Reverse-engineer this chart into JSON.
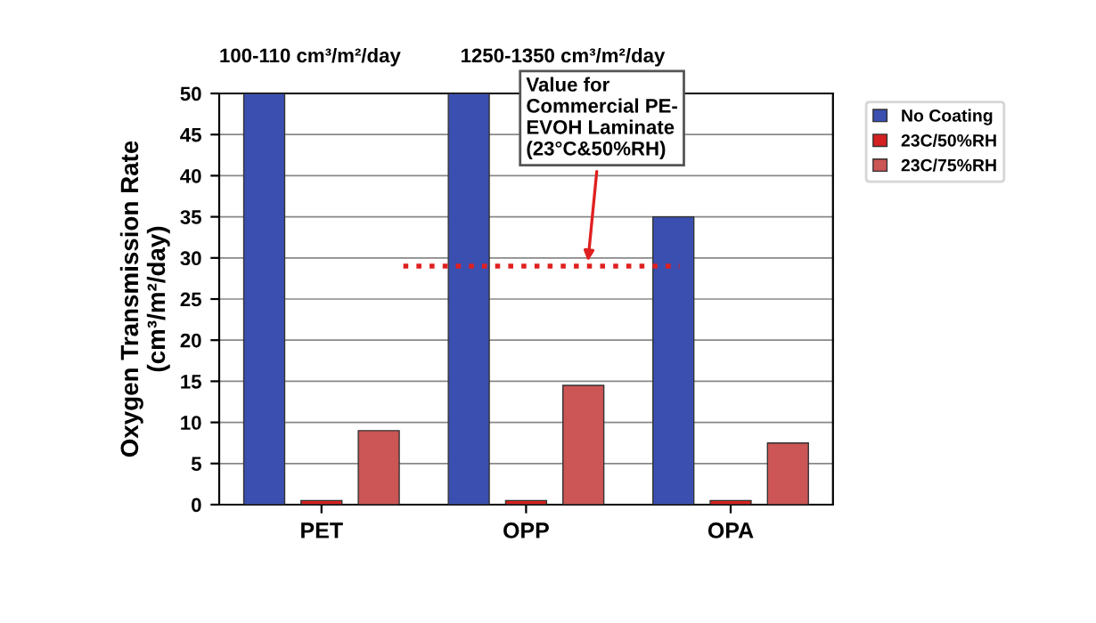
{
  "chart_data": {
    "type": "bar",
    "ylabel": "Oxygen Transmission Rate\n(cm³/m²/day)",
    "categories": [
      "PET",
      "OPP",
      "OPA"
    ],
    "series": [
      {
        "name": "No Coating",
        "color": "#3a4fb0",
        "values": [
          50,
          50,
          35
        ]
      },
      {
        "name": "23C/50%RH",
        "color": "#d42020",
        "values": [
          0.5,
          0.5,
          0.5
        ]
      },
      {
        "name": "23C/75%RH",
        "color": "#cc5555",
        "values": [
          9,
          14.5,
          7.5
        ]
      }
    ],
    "ylim": [
      0,
      50
    ],
    "yticks": [
      0,
      5,
      10,
      15,
      20,
      25,
      30,
      35,
      40,
      45,
      50
    ],
    "grid": "y",
    "legend": "top right",
    "ref_lines": [
      {
        "axis": "y",
        "value": 29,
        "color": "#e02020",
        "line_style": "dotted"
      }
    ],
    "annotations": [
      "100-110 cm³/m²/day",
      "1250-1350 cm³/m²/day",
      "Value for\nCommercial PE-\nEVOH Laminate\n(23°C&50%RH)"
    ]
  }
}
